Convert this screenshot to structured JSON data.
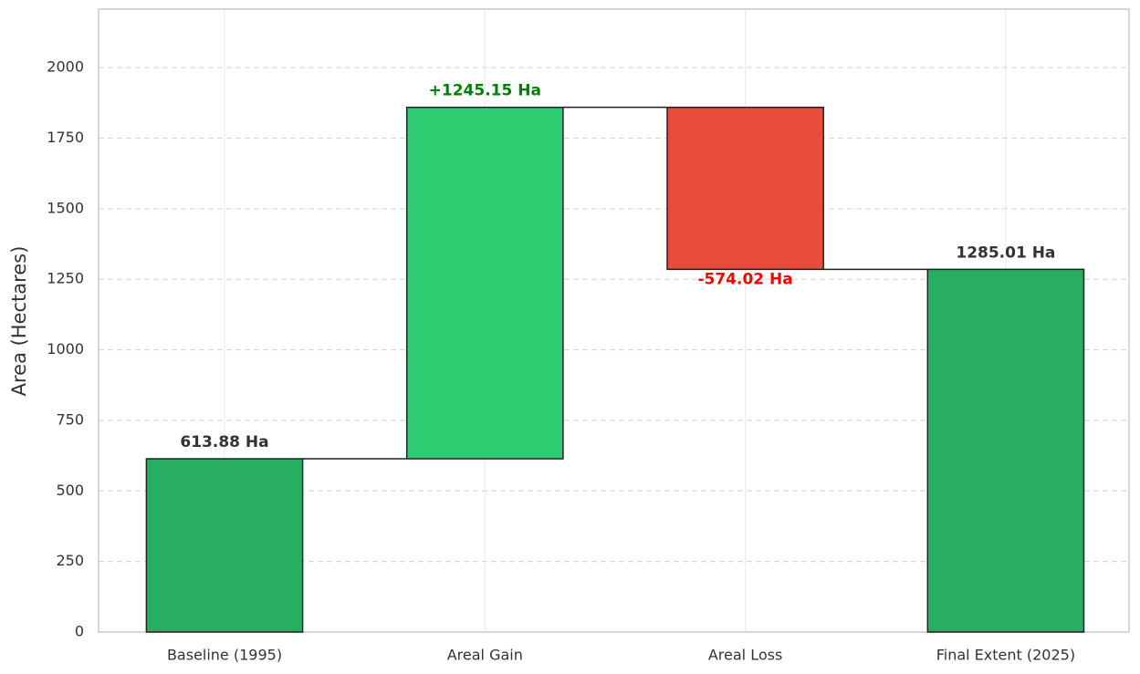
{
  "chart_data": {
    "type": "waterfall",
    "ylabel": "Area (Hectares)",
    "categories": [
      "Baseline (1995)",
      "Areal Gain",
      "Areal Loss",
      "Final Extent (2025)"
    ],
    "measure": [
      "absolute",
      "relative",
      "relative",
      "total"
    ],
    "values": [
      613.88,
      1245.15,
      -574.02,
      1285.01
    ],
    "value_labels": [
      "613.88 Ha",
      "+1245.15 Ha",
      "-574.02 Ha",
      "1285.01 Ha"
    ],
    "colors": [
      "#27ae60",
      "#2ecc71",
      "#e74c3c",
      "#27ae60"
    ],
    "label_colors": [
      "#333333",
      "#008000",
      "#ff0000",
      "#333333"
    ],
    "ylim": [
      0,
      2207
    ],
    "yticks": [
      0,
      250,
      500,
      750,
      1000,
      1250,
      1500,
      1750,
      2000
    ],
    "grid": true
  }
}
